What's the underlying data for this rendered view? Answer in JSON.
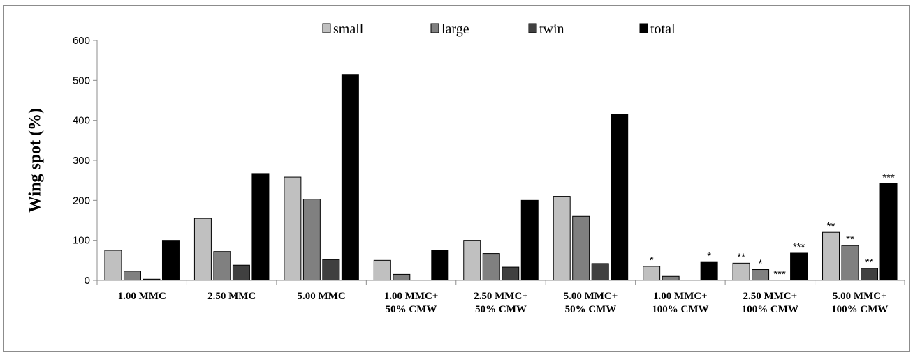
{
  "chart_data": {
    "type": "bar",
    "title": "",
    "xlabel": "",
    "ylabel": "Wing spot  (%)",
    "ylim": [
      0,
      600
    ],
    "yticks": [
      0,
      100,
      200,
      300,
      400,
      500,
      600
    ],
    "grid": false,
    "legend_position": "top",
    "categories": [
      [
        "1.00 MMC"
      ],
      [
        "2.50 MMC"
      ],
      [
        "5.00 MMC"
      ],
      [
        "1.00 MMC+",
        "50% CMW"
      ],
      [
        "2.50 MMC+",
        "50% CMW"
      ],
      [
        "5.00 MMC+",
        "50% CMW"
      ],
      [
        "1.00 MMC+",
        "100% CMW"
      ],
      [
        "2.50 MMC+",
        "100% CMW"
      ],
      [
        "5.00 MMC+",
        "100% CMW"
      ]
    ],
    "series": [
      {
        "name": "small",
        "color": "#c0c0c0",
        "values": [
          75,
          155,
          258,
          50,
          100,
          210,
          35,
          43,
          120
        ]
      },
      {
        "name": "large",
        "color": "#808080",
        "values": [
          23,
          72,
          203,
          15,
          67,
          160,
          10,
          27,
          87
        ]
      },
      {
        "name": "twin",
        "color": "#404040",
        "values": [
          3,
          38,
          52,
          0,
          33,
          42,
          0,
          0,
          30
        ]
      },
      {
        "name": "total",
        "color": "#000000",
        "values": [
          100,
          267,
          515,
          75,
          200,
          415,
          45,
          68,
          242
        ]
      }
    ],
    "annotations": [
      {
        "category": 6,
        "series": 0,
        "text": "*"
      },
      {
        "category": 6,
        "series": 3,
        "text": "*"
      },
      {
        "category": 7,
        "series": 0,
        "text": "**"
      },
      {
        "category": 7,
        "series": 1,
        "text": "*"
      },
      {
        "category": 7,
        "series": 2,
        "text": "***"
      },
      {
        "category": 7,
        "series": 3,
        "text": "***"
      },
      {
        "category": 8,
        "series": 0,
        "text": "**"
      },
      {
        "category": 8,
        "series": 1,
        "text": "**"
      },
      {
        "category": 8,
        "series": 2,
        "text": "**"
      },
      {
        "category": 8,
        "series": 3,
        "text": "***"
      }
    ]
  }
}
